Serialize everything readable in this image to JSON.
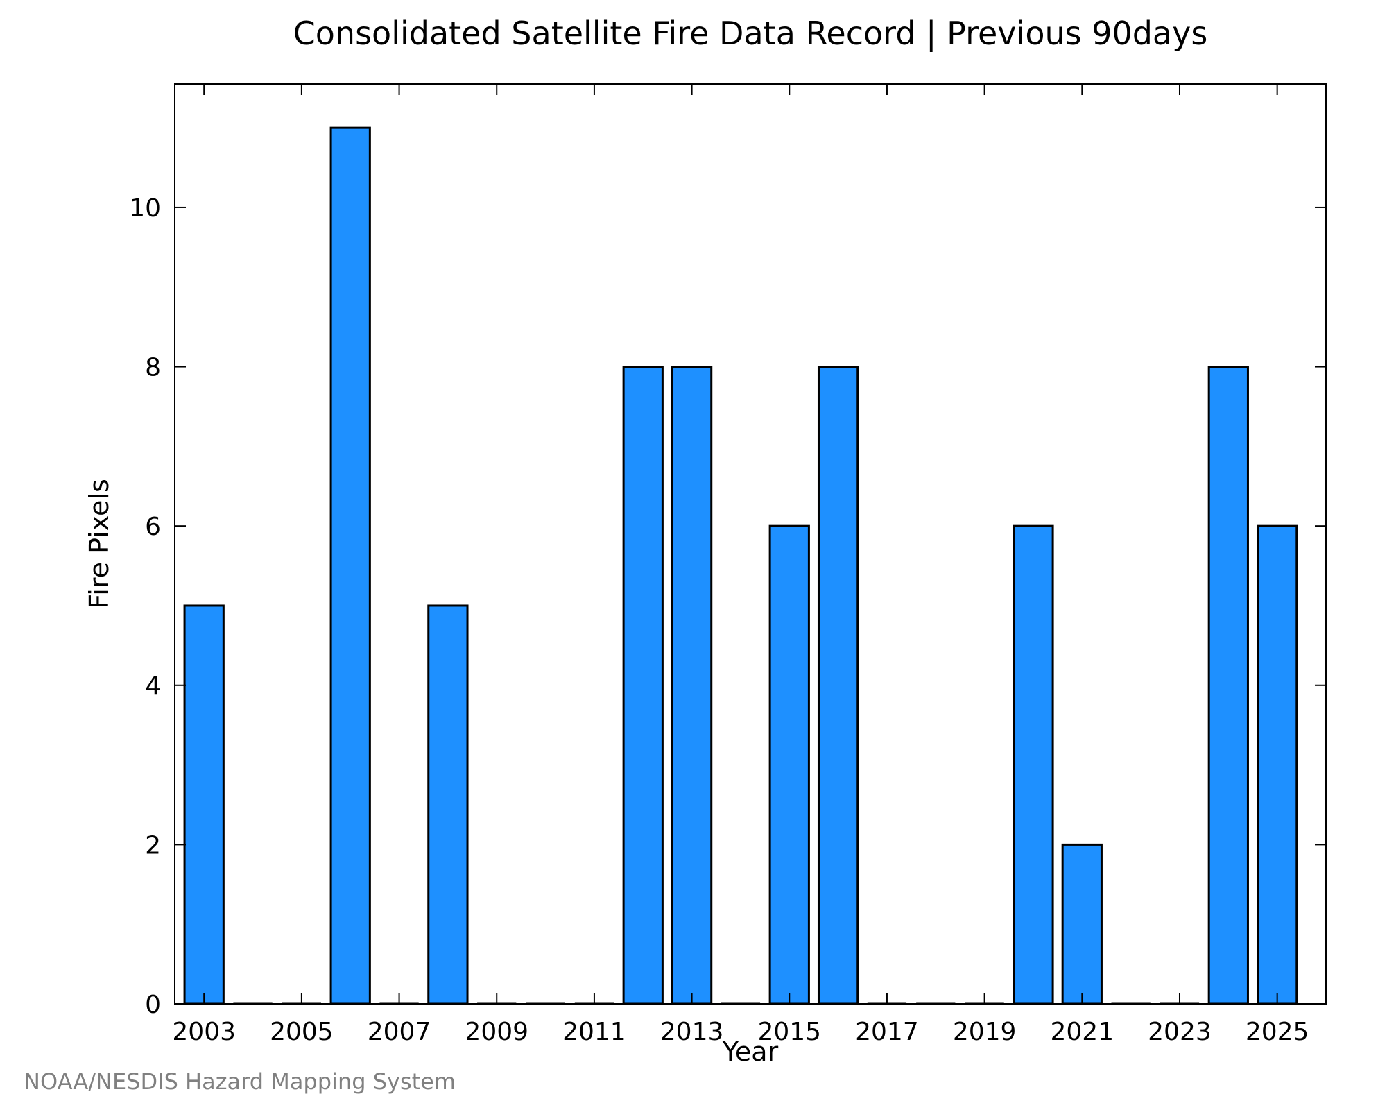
{
  "chart_data": {
    "type": "bar",
    "title": "Consolidated Satellite Fire Data Record | Previous 90days",
    "xlabel": "Year",
    "ylabel": "Fire Pixels",
    "credit": "NOAA/NESDIS Hazard Mapping System",
    "categories": [
      "2003",
      "2004",
      "2005",
      "2006",
      "2007",
      "2008",
      "2009",
      "2010",
      "2011",
      "2012",
      "2013",
      "2014",
      "2015",
      "2016",
      "2017",
      "2018",
      "2019",
      "2020",
      "2021",
      "2022",
      "2023",
      "2024",
      "2025"
    ],
    "values": [
      5,
      0,
      0,
      11,
      0,
      5,
      0,
      0,
      0,
      8,
      8,
      0,
      6,
      8,
      0,
      0,
      0,
      6,
      2,
      0,
      0,
      8,
      6
    ],
    "x_tick_labels": [
      "2003",
      "2005",
      "2007",
      "2009",
      "2011",
      "2013",
      "2015",
      "2017",
      "2019",
      "2021",
      "2023",
      "2025"
    ],
    "y_ticks": [
      0,
      2,
      4,
      6,
      8,
      10
    ],
    "y_tick_labels": [
      "0",
      "2",
      "4",
      "6",
      "8",
      "10"
    ],
    "xlim": [
      2002.4,
      2026
    ],
    "ylim": [
      0,
      11.55
    ],
    "grid": false,
    "bar_color": "#1e90ff",
    "edge_color": "#000000"
  }
}
